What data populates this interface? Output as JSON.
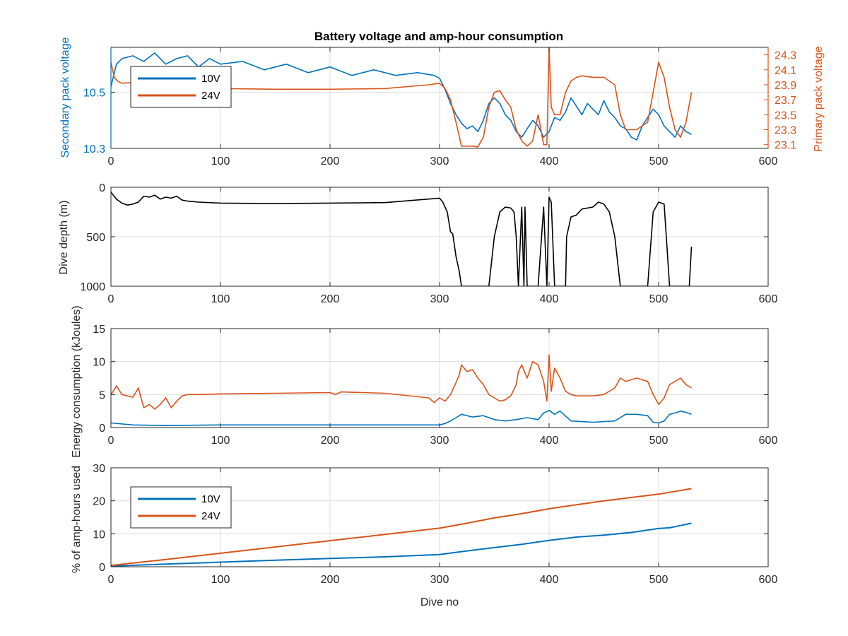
{
  "figure_title": "Battery voltage and amp-hour consumption",
  "colors": {
    "blue": "#0072BD",
    "orange": "#D95319",
    "black": "#000000",
    "axis": "#262626",
    "grid": "#dddddd"
  },
  "chart_data": [
    {
      "id": "voltage",
      "type": "line",
      "title": "Battery voltage and amp-hour consumption",
      "xlabel": "",
      "ylabel": "Secondary pack voltage",
      "ylabel_right": "Primary pack voltage",
      "xlim": [
        0,
        600
      ],
      "ylim": [
        10.3,
        10.66
      ],
      "ylim_right": [
        23.05,
        24.4
      ],
      "xticks": [
        0,
        100,
        200,
        300,
        400,
        500,
        600
      ],
      "yticks": [
        10.3,
        10.5
      ],
      "yticks_right": [
        23.1,
        23.3,
        23.5,
        23.7,
        23.9,
        24.1,
        24.3
      ],
      "grid": true,
      "legend": {
        "placement": "top-left",
        "entries": [
          "10V",
          "24V"
        ]
      },
      "series": [
        {
          "name": "10V",
          "axis": "left",
          "color": "#0072BD",
          "x": [
            0,
            5,
            10,
            20,
            30,
            40,
            50,
            60,
            70,
            80,
            90,
            100,
            120,
            140,
            160,
            180,
            200,
            220,
            240,
            260,
            280,
            295,
            300,
            305,
            310,
            315,
            320,
            325,
            330,
            335,
            340,
            345,
            350,
            355,
            360,
            365,
            370,
            375,
            380,
            385,
            390,
            395,
            400,
            405,
            410,
            415,
            420,
            425,
            430,
            435,
            440,
            445,
            450,
            455,
            460,
            465,
            470,
            475,
            480,
            485,
            490,
            495,
            500,
            505,
            510,
            515,
            520,
            525,
            530
          ],
          "y": [
            10.52,
            10.6,
            10.62,
            10.63,
            10.61,
            10.64,
            10.6,
            10.62,
            10.63,
            10.59,
            10.62,
            10.6,
            10.61,
            10.58,
            10.6,
            10.57,
            10.59,
            10.56,
            10.58,
            10.56,
            10.57,
            10.56,
            10.55,
            10.51,
            10.46,
            10.42,
            10.39,
            10.37,
            10.38,
            10.36,
            10.4,
            10.46,
            10.48,
            10.46,
            10.42,
            10.4,
            10.36,
            10.34,
            10.37,
            10.4,
            10.38,
            10.34,
            10.36,
            10.41,
            10.4,
            10.43,
            10.48,
            10.45,
            10.42,
            10.46,
            10.44,
            10.42,
            10.47,
            10.43,
            10.41,
            10.38,
            10.37,
            10.34,
            10.33,
            10.38,
            10.41,
            10.44,
            10.42,
            10.38,
            10.36,
            10.34,
            10.38,
            10.36,
            10.35
          ]
        },
        {
          "name": "24V",
          "axis": "right",
          "color": "#D95319",
          "x": [
            0,
            3,
            6,
            10,
            20,
            30,
            40,
            60,
            80,
            100,
            150,
            200,
            250,
            290,
            300,
            305,
            310,
            315,
            320,
            330,
            335,
            340,
            345,
            350,
            355,
            360,
            365,
            370,
            375,
            380,
            385,
            390,
            395,
            398,
            400,
            402,
            405,
            410,
            415,
            420,
            425,
            430,
            440,
            450,
            460,
            465,
            470,
            480,
            490,
            495,
            500,
            505,
            510,
            515,
            520,
            525,
            530
          ],
          "y": [
            24.2,
            24.0,
            23.95,
            23.92,
            23.93,
            23.9,
            23.9,
            23.88,
            23.86,
            23.85,
            23.84,
            23.84,
            23.85,
            23.9,
            23.92,
            23.85,
            23.7,
            23.4,
            23.08,
            23.08,
            23.07,
            23.2,
            23.6,
            23.8,
            23.82,
            23.7,
            23.6,
            23.3,
            23.15,
            23.08,
            23.15,
            23.5,
            23.1,
            23.1,
            24.4,
            23.6,
            23.5,
            23.5,
            23.8,
            23.95,
            24.0,
            24.02,
            24.0,
            24.0,
            23.9,
            23.5,
            23.3,
            23.3,
            23.4,
            23.8,
            24.2,
            24.0,
            23.6,
            23.3,
            23.2,
            23.4,
            23.8
          ]
        }
      ]
    },
    {
      "id": "depth",
      "type": "line",
      "title": "",
      "xlabel": "",
      "ylabel": "Dive depth (m)",
      "xlim": [
        0,
        600
      ],
      "ylim": [
        0,
        1000
      ],
      "y_reversed": true,
      "xticks": [
        0,
        100,
        200,
        300,
        400,
        500,
        600
      ],
      "yticks": [
        0,
        500,
        1000
      ],
      "grid": true,
      "series": [
        {
          "name": "",
          "color": "#000000",
          "x": [
            0,
            5,
            10,
            15,
            20,
            25,
            30,
            35,
            40,
            45,
            50,
            55,
            60,
            65,
            70,
            80,
            100,
            150,
            200,
            250,
            300,
            303,
            307,
            310,
            312,
            315,
            318,
            320,
            330,
            340,
            345,
            350,
            355,
            360,
            365,
            368,
            370,
            372,
            375,
            377,
            378,
            380,
            381,
            383,
            385,
            390,
            395,
            398,
            400,
            402,
            405,
            410,
            415,
            416,
            418,
            420,
            425,
            430,
            440,
            445,
            450,
            455,
            460,
            465,
            470,
            480,
            490,
            495,
            500,
            505,
            507,
            510,
            520,
            525,
            528,
            530
          ],
          "y": [
            50,
            120,
            160,
            180,
            170,
            150,
            90,
            100,
            80,
            120,
            100,
            110,
            90,
            130,
            140,
            150,
            160,
            165,
            160,
            155,
            110,
            150,
            250,
            450,
            470,
            700,
            850,
            1000,
            1000,
            1000,
            1000,
            500,
            250,
            200,
            210,
            250,
            500,
            1000,
            200,
            1000,
            200,
            1000,
            1000,
            1000,
            1000,
            1000,
            200,
            1000,
            100,
            150,
            1000,
            1000,
            1000,
            500,
            400,
            300,
            280,
            220,
            200,
            150,
            170,
            250,
            500,
            1000,
            1000,
            1000,
            1000,
            250,
            150,
            170,
            500,
            1000,
            1000,
            1000,
            1000,
            600
          ]
        }
      ]
    },
    {
      "id": "energy",
      "type": "line",
      "title": "",
      "xlabel": "",
      "ylabel": "Energy consumption (kJoules)",
      "xlim": [
        0,
        600
      ],
      "ylim": [
        0,
        15
      ],
      "xticks": [
        0,
        100,
        200,
        300,
        400,
        500,
        600
      ],
      "yticks": [
        0,
        5,
        10,
        15
      ],
      "grid": true,
      "series": [
        {
          "name": "24V",
          "color": "#D95319",
          "x": [
            0,
            5,
            10,
            20,
            25,
            30,
            35,
            40,
            45,
            50,
            55,
            60,
            65,
            70,
            80,
            100,
            150,
            200,
            205,
            210,
            250,
            290,
            295,
            300,
            305,
            310,
            315,
            318,
            320,
            325,
            330,
            335,
            340,
            345,
            350,
            355,
            360,
            365,
            370,
            372,
            375,
            380,
            385,
            390,
            395,
            398,
            400,
            402,
            405,
            410,
            415,
            420,
            425,
            430,
            440,
            450,
            460,
            465,
            470,
            480,
            490,
            495,
            500,
            505,
            510,
            515,
            520,
            525,
            530
          ],
          "y": [
            5.0,
            6.3,
            5.0,
            4.6,
            6.0,
            3.0,
            3.5,
            2.8,
            3.5,
            4.5,
            3.0,
            4.0,
            4.8,
            5.0,
            5.0,
            5.1,
            5.2,
            5.3,
            5.0,
            5.4,
            5.2,
            4.5,
            3.8,
            4.5,
            4.0,
            5.0,
            6.8,
            8.0,
            9.5,
            8.5,
            8.8,
            7.5,
            6.5,
            5.0,
            4.5,
            4.0,
            4.2,
            4.8,
            6.5,
            8.5,
            9.5,
            7.5,
            10.0,
            9.5,
            7.0,
            4.0,
            11.0,
            5.5,
            9.0,
            7.5,
            5.5,
            5.0,
            4.8,
            4.8,
            4.8,
            5.0,
            6.0,
            7.5,
            7.0,
            7.5,
            7.0,
            5.0,
            3.5,
            4.5,
            6.5,
            7.0,
            7.5,
            6.5,
            6.0
          ]
        },
        {
          "name": "10V",
          "color": "#0072BD",
          "x": [
            0,
            20,
            50,
            100,
            150,
            200,
            205,
            210,
            250,
            300,
            305,
            310,
            315,
            320,
            330,
            340,
            350,
            360,
            370,
            380,
            390,
            395,
            400,
            405,
            410,
            420,
            440,
            460,
            470,
            480,
            490,
            495,
            500,
            505,
            510,
            515,
            520,
            525,
            530
          ],
          "y": [
            0.7,
            0.4,
            0.3,
            0.4,
            0.4,
            0.4,
            0.4,
            0.4,
            0.4,
            0.4,
            0.6,
            1.0,
            1.5,
            2.0,
            1.6,
            1.8,
            1.2,
            1.0,
            1.2,
            1.5,
            1.2,
            2.2,
            2.6,
            2.0,
            2.5,
            1.0,
            0.8,
            1.0,
            2.0,
            2.0,
            1.8,
            0.8,
            0.7,
            1.0,
            2.0,
            2.2,
            2.5,
            2.3,
            2.0
          ]
        }
      ]
    },
    {
      "id": "amphours",
      "type": "line",
      "title": "",
      "xlabel": "Dive no",
      "ylabel": "% of amp-hours used",
      "xlim": [
        0,
        600
      ],
      "ylim": [
        0,
        30
      ],
      "xticks": [
        0,
        100,
        200,
        300,
        400,
        500,
        600
      ],
      "yticks": [
        0,
        10,
        20,
        30
      ],
      "grid": true,
      "legend": {
        "placement": "top-left",
        "entries": [
          "10V",
          "24V"
        ]
      },
      "series": [
        {
          "name": "10V",
          "color": "#0072BD",
          "x": [
            0,
            50,
            100,
            150,
            200,
            250,
            300,
            325,
            350,
            375,
            400,
            425,
            450,
            475,
            500,
            510,
            520,
            530
          ],
          "y": [
            0.2,
            0.8,
            1.4,
            2.0,
            2.5,
            3.0,
            3.7,
            4.8,
            5.8,
            6.8,
            8.0,
            9.0,
            9.6,
            10.4,
            11.6,
            11.8,
            12.5,
            13.2
          ]
        },
        {
          "name": "24V",
          "color": "#D95319",
          "x": [
            0,
            50,
            100,
            150,
            200,
            250,
            300,
            325,
            350,
            375,
            400,
            425,
            450,
            475,
            500,
            530
          ],
          "y": [
            0.4,
            2.2,
            4.1,
            6.0,
            7.9,
            9.8,
            11.7,
            13.2,
            14.8,
            16.1,
            17.6,
            18.8,
            20.0,
            21.0,
            22.0,
            23.7
          ]
        }
      ]
    }
  ]
}
